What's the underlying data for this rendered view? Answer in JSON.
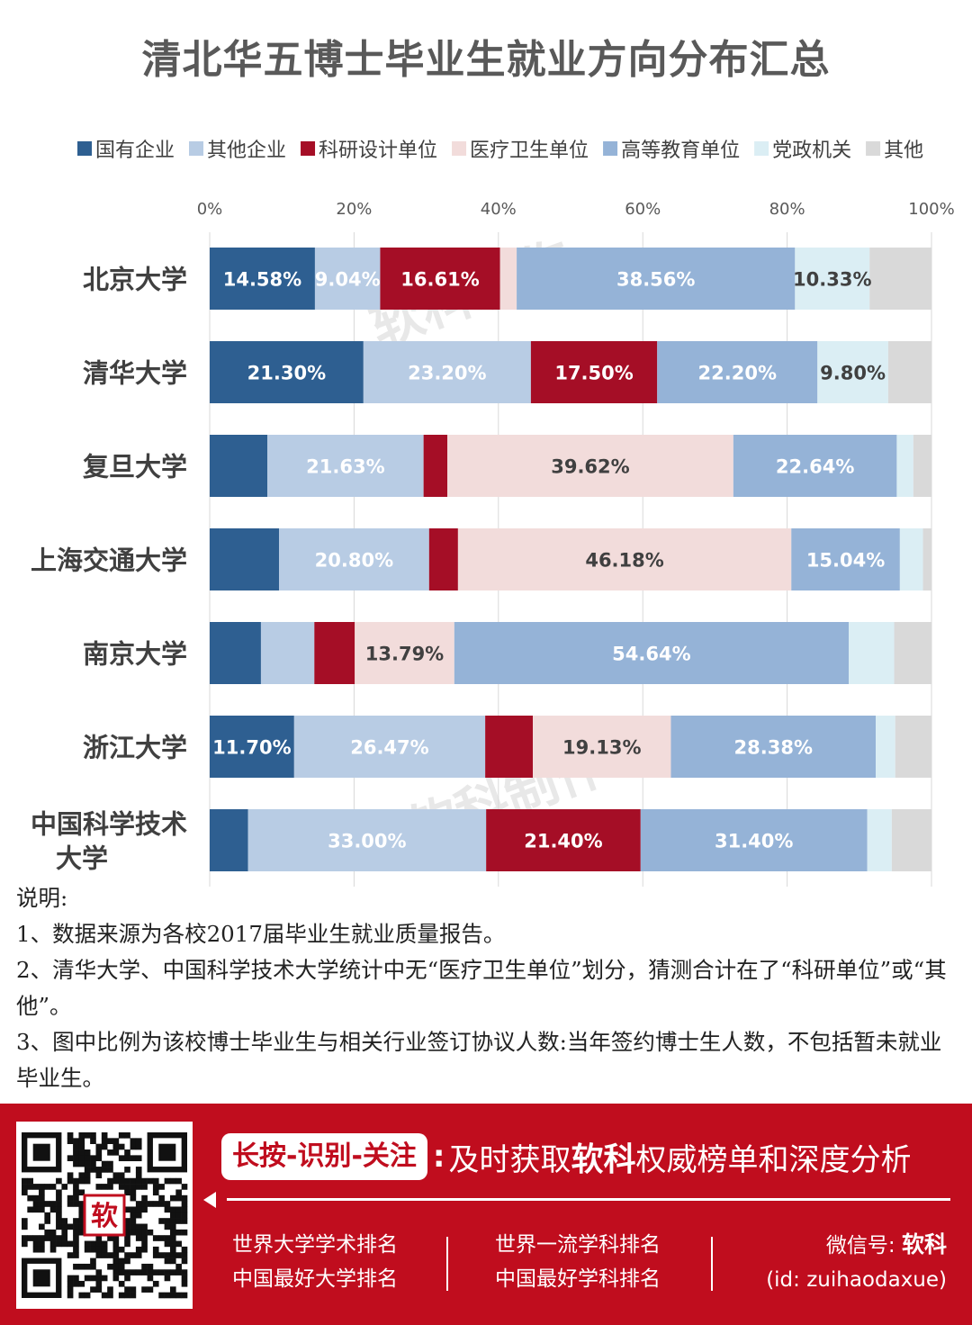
{
  "title": "清北华五博士毕业生就业方向分布汇总",
  "chart_data": {
    "type": "bar",
    "orientation": "horizontal",
    "stacked": "percent",
    "title": "清北华五博士毕业生就业方向分布汇总",
    "xlim": [
      0,
      100
    ],
    "x_ticks": [
      "0%",
      "20%",
      "40%",
      "60%",
      "80%",
      "100%"
    ],
    "grid": "vertical",
    "legend_position": "top",
    "categories": [
      "北京大学",
      "清华大学",
      "复旦大学",
      "上海交通大学",
      "南京大学",
      "浙江大学",
      "中国科学技术大学"
    ],
    "series": [
      {
        "name": "国有企业",
        "color": "#2e5f91",
        "values": [
          14.58,
          21.3,
          8.0,
          9.6,
          7.1,
          11.7,
          5.3
        ]
      },
      {
        "name": "其他企业",
        "color": "#b8cce4",
        "values": [
          9.04,
          23.2,
          21.63,
          20.8,
          7.4,
          26.47,
          33.0
        ]
      },
      {
        "name": "科研设计单位",
        "color": "#a50e26",
        "values": [
          16.61,
          17.5,
          3.3,
          4.0,
          5.6,
          6.6,
          21.4
        ]
      },
      {
        "name": "医疗卫生单位",
        "color": "#f2dcdb",
        "values": [
          2.3,
          0,
          39.62,
          46.18,
          13.79,
          19.13,
          0
        ]
      },
      {
        "name": "高等教育单位",
        "color": "#95b3d7",
        "values": [
          38.56,
          22.2,
          22.64,
          15.04,
          54.64,
          28.38,
          31.4
        ]
      },
      {
        "name": "党政机关",
        "color": "#dbeef4",
        "values": [
          10.33,
          9.8,
          2.3,
          3.2,
          6.3,
          2.7,
          3.4
        ]
      },
      {
        "name": "其他",
        "color": "#d9d9d9",
        "values": [
          8.58,
          6.0,
          2.51,
          1.18,
          5.17,
          5.02,
          5.5
        ]
      }
    ],
    "data_labels": [
      [
        "14.58%",
        "9.04%",
        "16.61%",
        "",
        "38.56%",
        "10.33%",
        ""
      ],
      [
        "21.30%",
        "23.20%",
        "17.50%",
        "",
        "22.20%",
        "9.80%",
        ""
      ],
      [
        "",
        "21.63%",
        "",
        "39.62%",
        "22.64%",
        "",
        ""
      ],
      [
        "",
        "20.80%",
        "",
        "46.18%",
        "15.04%",
        "",
        ""
      ],
      [
        "",
        "",
        "",
        "13.79%",
        "54.64%",
        "",
        ""
      ],
      [
        "11.70%",
        "26.47%",
        "",
        "19.13%",
        "28.38%",
        "",
        ""
      ],
      [
        "",
        "33.00%",
        "21.40%",
        "",
        "31.40%",
        "",
        ""
      ]
    ],
    "label_colors": [
      [
        "#ffffff",
        "#ffffff",
        "#ffffff",
        "",
        "#ffffff",
        "#404040",
        ""
      ],
      [
        "#ffffff",
        "#ffffff",
        "#ffffff",
        "",
        "#ffffff",
        "#404040",
        ""
      ],
      [
        "",
        "#ffffff",
        "",
        "#404040",
        "#ffffff",
        "",
        ""
      ],
      [
        "",
        "#ffffff",
        "",
        "#404040",
        "#ffffff",
        "",
        ""
      ],
      [
        "",
        "",
        "",
        "#404040",
        "#ffffff",
        "",
        ""
      ],
      [
        "#ffffff",
        "#ffffff",
        "",
        "#404040",
        "#ffffff",
        "",
        ""
      ],
      [
        "",
        "#ffffff",
        "#ffffff",
        "",
        "#ffffff",
        "",
        ""
      ]
    ],
    "watermark": "软科制作"
  },
  "notes": {
    "heading": "说明:",
    "items": [
      "1、数据来源为各校2017届毕业生就业质量报告。",
      "2、清华大学、中国科学技术大学统计中无“医疗卫生单位”划分，猜测合计在了“科研单位”或“其他”。",
      "3、图中比例为该校博士毕业生与相关行业签订协议人数:当年签约博士生人数，不包括暂未就业毕业生。"
    ]
  },
  "footer": {
    "slogan_tag": "长按-识别-关注",
    "slogan_colon": ":",
    "slogan_pre": "及时获取",
    "slogan_strong": "软科",
    "slogan_post": "权威榜单和深度分析",
    "links_col1": [
      "世界大学学术排名",
      "中国最好大学排名"
    ],
    "links_col2": [
      "世界一流学科排名",
      "中国最好学科排名"
    ],
    "wechat_label": "微信号: ",
    "wechat_name": "软科",
    "wechat_id": "(id: zuihaodaxue)",
    "qr_logo": "软",
    "colors": {
      "brand_red": "#c00d1e"
    }
  }
}
